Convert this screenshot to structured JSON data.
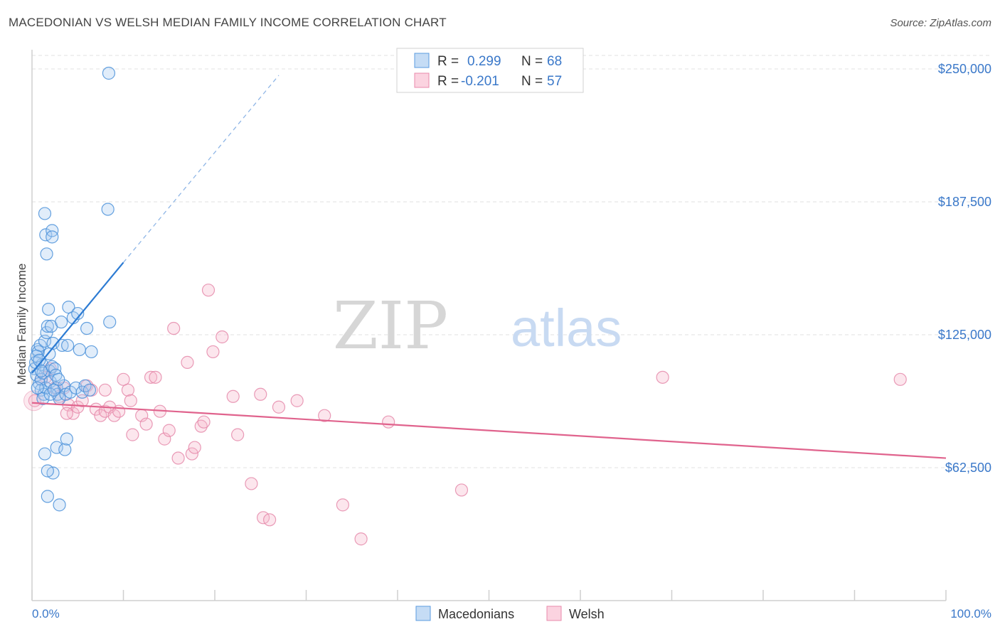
{
  "title": "MACEDONIAN VS WELSH MEDIAN FAMILY INCOME CORRELATION CHART",
  "source": "Source: ZipAtlas.com",
  "watermark": {
    "zip": "ZIP",
    "atlas": "atlas"
  },
  "colors": {
    "blue": "#4a90d9",
    "blueLine": "#2c7bd3",
    "pink": "#e58aaa",
    "pinkLine": "#e0638d",
    "axisText": "#3a78c9"
  },
  "legend_stats": [
    {
      "r_label": "R =",
      "r_value": "0.299",
      "n_label": "N =",
      "n_value": "68"
    },
    {
      "r_label": "R =",
      "r_value": "-0.201",
      "n_label": "N =",
      "n_value": "57"
    }
  ],
  "bottom_legend": [
    "Macedonians",
    "Welsh"
  ],
  "chart_data": {
    "type": "scatter",
    "title": "MACEDONIAN VS WELSH MEDIAN FAMILY INCOME CORRELATION CHART",
    "ylabel": "Median Family Income",
    "xlabel": "",
    "xlim": [
      0,
      100
    ],
    "ylim": [
      0,
      265000
    ],
    "x_tick_labels": [
      "0.0%",
      "100.0%"
    ],
    "y_ticks": [
      62500,
      125000,
      187500,
      250000
    ],
    "y_tick_labels": [
      "$62,500",
      "$125,000",
      "$187,500",
      "$250,000"
    ],
    "series": [
      {
        "name": "Macedonians",
        "color": "#4a90d9",
        "trend": {
          "x": [
            0,
            10
          ],
          "y": [
            107000,
            159000
          ],
          "dashed_to": [
            27,
            247000
          ]
        },
        "points": [
          [
            0.3,
            109000
          ],
          [
            0.4,
            112000
          ],
          [
            0.5,
            106000
          ],
          [
            0.6,
            118000
          ],
          [
            0.7,
            117000
          ],
          [
            0.8,
            102000
          ],
          [
            0.9,
            120000
          ],
          [
            1.0,
            104000
          ],
          [
            1.0,
            99000
          ],
          [
            1.1,
            111000
          ],
          [
            1.2,
            107000
          ],
          [
            1.3,
            97000
          ],
          [
            1.4,
            122000
          ],
          [
            1.5,
            100000
          ],
          [
            1.6,
            126000
          ],
          [
            1.7,
            129000
          ],
          [
            1.8,
            137000
          ],
          [
            1.9,
            108000
          ],
          [
            2.0,
            103000
          ],
          [
            2.1,
            129000
          ],
          [
            2.2,
            110000
          ],
          [
            2.3,
            121000
          ],
          [
            2.5,
            109000
          ],
          [
            2.6,
            106000
          ],
          [
            2.7,
            100000
          ],
          [
            2.8,
            97000
          ],
          [
            3.0,
            95000
          ],
          [
            3.2,
            131000
          ],
          [
            3.3,
            120000
          ],
          [
            3.5,
            101000
          ],
          [
            3.7,
            97000
          ],
          [
            4.0,
            138000
          ],
          [
            4.2,
            98000
          ],
          [
            4.5,
            133000
          ],
          [
            4.8,
            100000
          ],
          [
            5.0,
            135000
          ],
          [
            5.2,
            118000
          ],
          [
            5.5,
            98000
          ],
          [
            5.8,
            101000
          ],
          [
            6.0,
            128000
          ],
          [
            6.3,
            99000
          ],
          [
            6.5,
            117000
          ],
          [
            1.4,
            182000
          ],
          [
            1.5,
            172000
          ],
          [
            2.2,
            174000
          ],
          [
            2.2,
            171000
          ],
          [
            1.6,
            163000
          ],
          [
            8.3,
            184000
          ],
          [
            8.5,
            131000
          ],
          [
            2.3,
            60000
          ],
          [
            1.7,
            61000
          ],
          [
            2.7,
            72000
          ],
          [
            3.6,
            71000
          ],
          [
            1.4,
            69000
          ],
          [
            3.8,
            76000
          ],
          [
            1.7,
            49000
          ],
          [
            3.0,
            45000
          ],
          [
            8.4,
            248000
          ],
          [
            0.5,
            115000
          ],
          [
            0.8,
            113000
          ],
          [
            1.2,
            95000
          ],
          [
            2.0,
            97000
          ],
          [
            2.4,
            99000
          ],
          [
            0.6,
            100000
          ],
          [
            1.0,
            108000
          ],
          [
            3.9,
            120000
          ],
          [
            2.9,
            104000
          ],
          [
            1.9,
            116000
          ]
        ]
      },
      {
        "name": "Welsh",
        "color": "#e58aaa",
        "trend": {
          "x": [
            0,
            100
          ],
          "y": [
            93000,
            67000
          ]
        },
        "points": [
          [
            0.3,
            94000
          ],
          [
            1.5,
            105000
          ],
          [
            2.0,
            109000
          ],
          [
            3.0,
            96000
          ],
          [
            3.5,
            100000
          ],
          [
            4.0,
            92000
          ],
          [
            4.5,
            88000
          ],
          [
            5.0,
            91000
          ],
          [
            5.5,
            94000
          ],
          [
            6.0,
            101000
          ],
          [
            6.5,
            99000
          ],
          [
            7.0,
            90000
          ],
          [
            7.5,
            87000
          ],
          [
            8.0,
            89000
          ],
          [
            8.5,
            91000
          ],
          [
            8.0,
            99000
          ],
          [
            9.0,
            87000
          ],
          [
            9.5,
            89000
          ],
          [
            10.0,
            104000
          ],
          [
            10.5,
            99000
          ],
          [
            10.8,
            94000
          ],
          [
            11.0,
            78000
          ],
          [
            12.0,
            87000
          ],
          [
            12.5,
            83000
          ],
          [
            13.0,
            105000
          ],
          [
            13.5,
            105000
          ],
          [
            14.0,
            89000
          ],
          [
            14.5,
            76000
          ],
          [
            15.0,
            80000
          ],
          [
            15.5,
            128000
          ],
          [
            16.0,
            67000
          ],
          [
            17.0,
            112000
          ],
          [
            17.5,
            69000
          ],
          [
            17.8,
            72000
          ],
          [
            18.5,
            82000
          ],
          [
            18.8,
            84000
          ],
          [
            19.3,
            146000
          ],
          [
            19.8,
            117000
          ],
          [
            20.8,
            124000
          ],
          [
            22.0,
            96000
          ],
          [
            22.5,
            78000
          ],
          [
            24.0,
            55000
          ],
          [
            25.0,
            97000
          ],
          [
            25.3,
            39000
          ],
          [
            26.0,
            38000
          ],
          [
            27.0,
            91000
          ],
          [
            29.0,
            94000
          ],
          [
            32.0,
            87000
          ],
          [
            34.0,
            45000
          ],
          [
            36.0,
            29000
          ],
          [
            39.0,
            84000
          ],
          [
            47.0,
            52000
          ],
          [
            69.0,
            105000
          ],
          [
            95.0,
            104000
          ],
          [
            1.0,
            104000
          ],
          [
            2.5,
            100000
          ],
          [
            3.8,
            88000
          ]
        ]
      }
    ]
  }
}
